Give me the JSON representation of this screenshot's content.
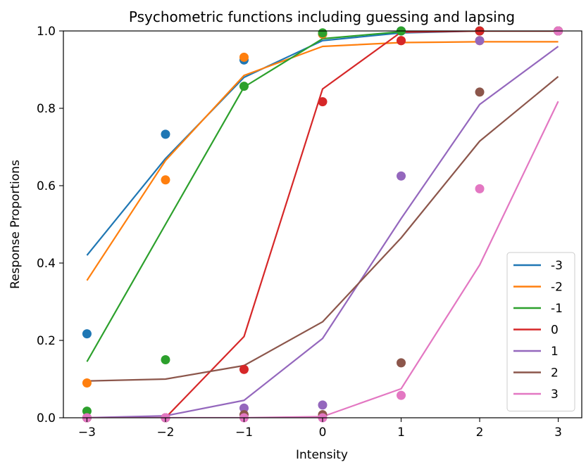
{
  "chart_data": {
    "type": "line",
    "title": "Psychometric functions including guessing and lapsing",
    "xlabel": "Intensity",
    "ylabel": "Response Proportions",
    "xlim": [
      -3.3,
      3.3
    ],
    "ylim": [
      0.0,
      1.0
    ],
    "x_ticks": [
      -3,
      -2,
      -1,
      0,
      1,
      2,
      3
    ],
    "x_tick_labels": [
      "−3",
      "−2",
      "−1",
      "0",
      "1",
      "2",
      "3"
    ],
    "y_ticks": [
      0.0,
      0.2,
      0.4,
      0.6,
      0.8,
      1.0
    ],
    "y_tick_labels": [
      "0.0",
      "0.2",
      "0.4",
      "0.6",
      "0.8",
      "1.0"
    ],
    "grid": false,
    "legend_position": "lower-right",
    "x": [
      -3,
      -2,
      -1,
      0,
      1,
      2,
      3
    ],
    "series": [
      {
        "name": "-3",
        "color": "#1f77b4",
        "fit": [
          0.42,
          0.67,
          0.88,
          0.975,
          0.995,
          1.0,
          1.0
        ],
        "observed": [
          0.217,
          0.733,
          0.925,
          0.992,
          1.0,
          1.0,
          1.0
        ]
      },
      {
        "name": "-2",
        "color": "#ff7f0e",
        "fit": [
          0.355,
          0.665,
          0.885,
          0.96,
          0.97,
          0.972,
          0.972
        ],
        "observed": [
          0.09,
          0.615,
          0.932,
          0.992,
          0.975,
          0.975,
          1.0
        ]
      },
      {
        "name": "-1",
        "color": "#2ca02c",
        "fit": [
          0.145,
          0.5,
          0.855,
          0.98,
          0.998,
          1.0,
          1.0
        ],
        "observed": [
          0.017,
          0.15,
          0.857,
          0.995,
          1.0,
          1.0,
          1.0
        ]
      },
      {
        "name": "0",
        "color": "#d62728",
        "fit": [
          0.0,
          0.0,
          0.21,
          0.85,
          0.997,
          1.0,
          1.0
        ],
        "observed": [
          0.0,
          0.0,
          0.125,
          0.817,
          0.975,
          1.0,
          1.0
        ]
      },
      {
        "name": "1",
        "color": "#9467bd",
        "fit": [
          0.0,
          0.005,
          0.045,
          0.205,
          0.515,
          0.81,
          0.96
        ],
        "observed": [
          0.0,
          0.0,
          0.025,
          0.033,
          0.625,
          0.975,
          1.0
        ]
      },
      {
        "name": "2",
        "color": "#8c564b",
        "fit": [
          0.095,
          0.1,
          0.135,
          0.248,
          0.465,
          0.715,
          0.882
        ],
        "observed": [
          0.0,
          0.0,
          0.008,
          0.008,
          0.142,
          0.842,
          1.0
        ]
      },
      {
        "name": "3",
        "color": "#e377c2",
        "fit": [
          0.0,
          0.0,
          0.0,
          0.003,
          0.075,
          0.395,
          0.818
        ],
        "observed": [
          0.0,
          0.0,
          0.0,
          0.0,
          0.058,
          0.592,
          1.0
        ]
      }
    ]
  }
}
